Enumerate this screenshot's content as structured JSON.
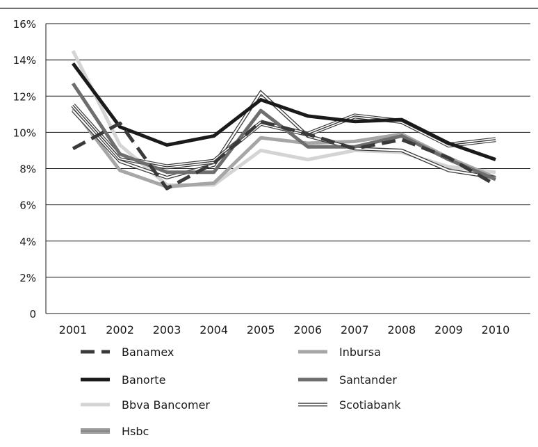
{
  "chart_data": {
    "type": "line",
    "title": "",
    "xlabel": "",
    "ylabel": "",
    "categories": [
      "2001",
      "2002",
      "2003",
      "2004",
      "2005",
      "2006",
      "2007",
      "2008",
      "2009",
      "2010"
    ],
    "ylim": [
      0,
      16
    ],
    "yticks": [
      {
        "value": 0,
        "label": "0"
      },
      {
        "value": 2,
        "label": "2%"
      },
      {
        "value": 4,
        "label": "4%"
      },
      {
        "value": 6,
        "label": "6%"
      },
      {
        "value": 8,
        "label": "8%"
      },
      {
        "value": 10,
        "label": "10%"
      },
      {
        "value": 12,
        "label": "12%"
      },
      {
        "value": 14,
        "label": "14%"
      },
      {
        "value": 16,
        "label": "16%"
      }
    ],
    "grid": true,
    "legend_position": "bottom",
    "series": [
      {
        "name": "Banamex",
        "style": "dashed",
        "color": "#3a3a3a",
        "values": [
          9.1,
          10.5,
          6.9,
          8.3,
          10.6,
          9.9,
          9.1,
          9.6,
          8.6,
          7.1
        ]
      },
      {
        "name": "Inbursa",
        "style": "solid",
        "color": "#a6a6a6",
        "values": [
          11.3,
          7.9,
          7.0,
          7.2,
          9.7,
          9.4,
          9.5,
          9.9,
          8.6,
          7.5
        ]
      },
      {
        "name": "Banorte",
        "style": "solid",
        "color": "#1a1a1a",
        "values": [
          13.8,
          10.3,
          9.3,
          9.8,
          11.8,
          10.9,
          10.6,
          10.7,
          9.4,
          8.5
        ]
      },
      {
        "name": "Santander",
        "style": "solid",
        "color": "#6e6e6e",
        "values": [
          12.7,
          8.8,
          7.8,
          7.8,
          11.2,
          9.2,
          9.2,
          9.8,
          8.5,
          7.4
        ]
      },
      {
        "name": "Bbva Bancomer",
        "style": "solid",
        "color": "#d4d4d4",
        "values": [
          14.5,
          9.3,
          7.1,
          7.1,
          9.0,
          8.5,
          9.0,
          8.9,
          8.1,
          7.8
        ]
      },
      {
        "name": "Scotiabank",
        "style": "double",
        "color": "#3a3a3a",
        "values": [
          11.2,
          8.4,
          7.5,
          8.2,
          12.2,
          9.8,
          9.1,
          9.0,
          7.9,
          7.5
        ]
      },
      {
        "name": "Hsbc",
        "style": "triple",
        "color": "#3a3a3a",
        "values": [
          11.5,
          8.6,
          8.1,
          8.4,
          10.5,
          9.9,
          10.9,
          10.6,
          9.3,
          9.6
        ]
      }
    ]
  }
}
